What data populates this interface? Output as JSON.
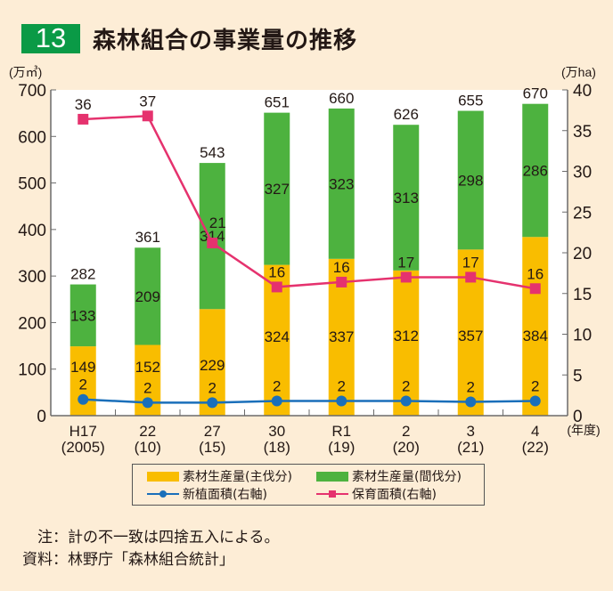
{
  "figure": {
    "number": "13",
    "title": "森林組合の事業量の推移"
  },
  "colors": {
    "badge": "#0a9a46",
    "main_cut": "#f9bd00",
    "thinning": "#4db23f",
    "new_planting": "#1a6fba",
    "tending": "#e5326e",
    "background": "#fdedd6"
  },
  "chart_data": {
    "type": "bar",
    "stacked": true,
    "title": "森林組合の事業量の推移",
    "categories": [
      "H17\n(2005)",
      "22\n(10)",
      "27\n(15)",
      "30\n(18)",
      "R1\n(19)",
      "2\n(20)",
      "3\n(21)",
      "4\n(22)"
    ],
    "category_labels": [
      {
        "top": "H17",
        "bottom": "(2005)"
      },
      {
        "top": "22",
        "bottom": "(10)"
      },
      {
        "top": "27",
        "bottom": "(15)"
      },
      {
        "top": "30",
        "bottom": "(18)"
      },
      {
        "top": "R1",
        "bottom": "(19)"
      },
      {
        "top": "2",
        "bottom": "(20)"
      },
      {
        "top": "3",
        "bottom": "(21)"
      },
      {
        "top": "4",
        "bottom": "(22)"
      }
    ],
    "xlabel_unit": "(年度)",
    "ylabel": "(万㎥)",
    "ylabel_right": "(万ha)",
    "ylim": [
      0,
      700
    ],
    "yticks": [
      0,
      100,
      200,
      300,
      400,
      500,
      600,
      700
    ],
    "ylim_right": [
      0,
      40
    ],
    "yticks_right": [
      0,
      5,
      10,
      15,
      20,
      25,
      30,
      35,
      40
    ],
    "totals": [
      282,
      361,
      543,
      651,
      660,
      626,
      655,
      670
    ],
    "series": [
      {
        "name": "素材生産量(主伐分)",
        "type": "bar",
        "axis": "left",
        "values": [
          149,
          152,
          229,
          324,
          337,
          312,
          357,
          384
        ]
      },
      {
        "name": "素材生産量(間伐分)",
        "type": "bar",
        "axis": "left",
        "values": [
          133,
          209,
          314,
          327,
          323,
          313,
          298,
          286
        ]
      },
      {
        "name": "新植面積(右軸)",
        "type": "line",
        "axis": "right",
        "marker": "circle",
        "values": [
          2,
          2,
          2,
          2,
          2,
          2,
          2,
          2
        ],
        "plot_values": [
          2.0,
          1.6,
          1.6,
          1.8,
          1.8,
          1.8,
          1.7,
          1.8
        ]
      },
      {
        "name": "保育面積(右軸)",
        "type": "line",
        "axis": "right",
        "marker": "square",
        "values": [
          36,
          37,
          21,
          16,
          16,
          17,
          17,
          16
        ],
        "plot_values": [
          36.4,
          36.8,
          21.2,
          15.8,
          16.4,
          17.0,
          17.0,
          15.6
        ]
      }
    ],
    "grid": false,
    "legend_position": "bottom"
  },
  "legend": [
    {
      "label": "素材生産量(主伐分)",
      "kind": "bar"
    },
    {
      "label": "素材生産量(間伐分)",
      "kind": "bar"
    },
    {
      "label": "新植面積(右軸)",
      "kind": "line-circle"
    },
    {
      "label": "保育面積(右軸)",
      "kind": "line-square"
    }
  ],
  "notes": {
    "note": "　注：計の不一致は四捨五入による。",
    "source": "資料：林野庁「森林組合統計」"
  }
}
